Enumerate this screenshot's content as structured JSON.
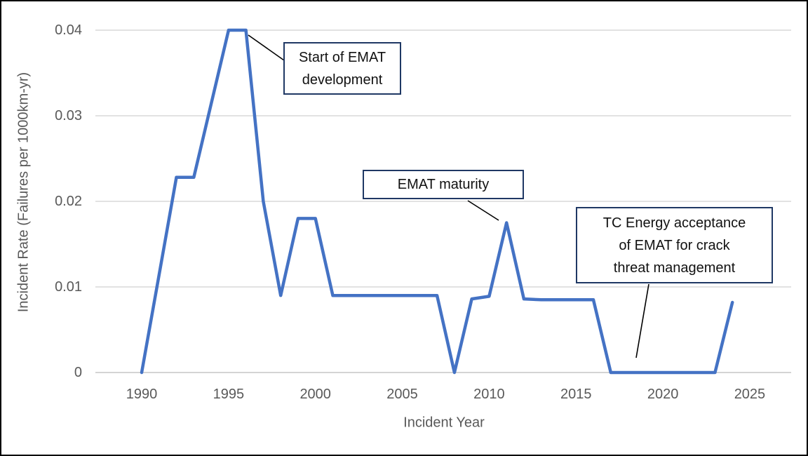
{
  "chart_data": {
    "type": "line",
    "title": "",
    "xlabel": "Incident Year",
    "ylabel": "Incident Rate (Failures per 1000km-yr)",
    "x": [
      1990,
      1991,
      1992,
      1993,
      1994,
      1995,
      1996,
      1997,
      1998,
      1999,
      2000,
      2001,
      2002,
      2003,
      2004,
      2005,
      2006,
      2007,
      2008,
      2009,
      2010,
      2011,
      2012,
      2013,
      2014,
      2015,
      2016,
      2017,
      2018,
      2019,
      2020,
      2021,
      2022,
      2023,
      2024
    ],
    "series": [
      {
        "name": "Incident Rate",
        "values": [
          0,
          0.0114,
          0.0228,
          0.0228,
          0.0314,
          0.04,
          0.04,
          0.02,
          0.009,
          0.018,
          0.018,
          0.009,
          0.009,
          0.009,
          0.009,
          0.009,
          0.009,
          0.009,
          0,
          0.0086,
          0.0089,
          0.0175,
          0.0086,
          0.0085,
          0.0085,
          0.0085,
          0.0085,
          0,
          0,
          0,
          0,
          0,
          0,
          0,
          0.0082
        ]
      }
    ],
    "ylim": [
      0,
      0.04
    ],
    "xlim": [
      1988,
      2026
    ],
    "y_ticks": [
      {
        "value": 0.04,
        "label": "0.04"
      },
      {
        "value": 0.03,
        "label": "0.03"
      },
      {
        "value": 0.02,
        "label": "0.02"
      },
      {
        "value": 0.01,
        "label": "0.01"
      },
      {
        "value": 0,
        "label": "0"
      }
    ],
    "x_ticks": [
      "1990",
      "1995",
      "2000",
      "2005",
      "2010",
      "2015",
      "2020",
      "2025"
    ],
    "grid": "horizontal",
    "legend": "none",
    "line_color": "#4472C4",
    "gridline_color": "#D9D9D9",
    "axis_line_color": "#C6C6C6",
    "axis_text_color": "#595959",
    "annotation_border_color": "#1F3864"
  },
  "annotations": [
    {
      "id": "start-of-emat-development",
      "lines": [
        "Start of EMAT",
        "development"
      ],
      "target_year": 1996,
      "target_value": 0.04
    },
    {
      "id": "emat-maturity",
      "lines": [
        "EMAT maturity"
      ],
      "target_year": 2011,
      "target_value": 0.0175
    },
    {
      "id": "tc-energy-acceptance",
      "lines": [
        "TC Energy acceptance",
        "of EMAT for crack",
        "threat management"
      ],
      "target_year": 2018,
      "target_value": 0
    }
  ]
}
